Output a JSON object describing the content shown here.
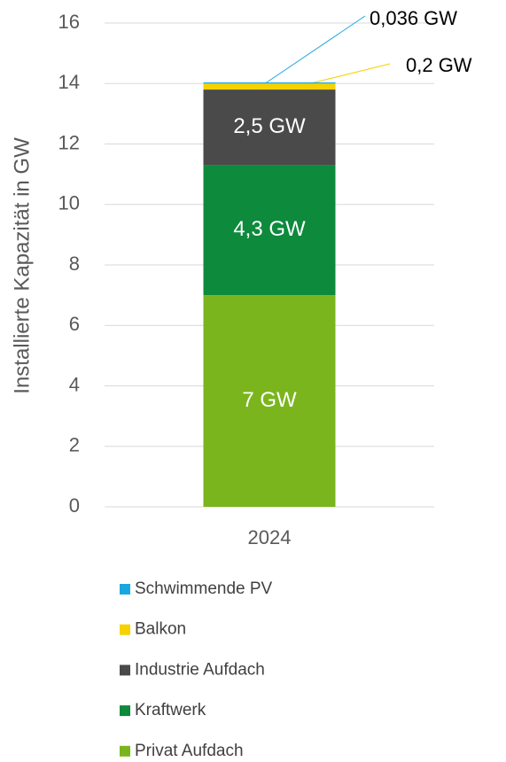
{
  "chart_data": {
    "type": "stacked_bar",
    "y_label": "Installierte Kapazität in GW",
    "categories": [
      "2024"
    ],
    "series": [
      {
        "name": "Privat Aufdach",
        "color": "#7ab51d",
        "values": [
          7
        ],
        "value_labels": [
          "7 GW"
        ]
      },
      {
        "name": "Kraftwerk",
        "color": "#0d8a3c",
        "values": [
          4.3
        ],
        "value_labels": [
          "4,3 GW"
        ]
      },
      {
        "name": "Industrie Aufdach",
        "color": "#4a4a4a",
        "values": [
          2.5
        ],
        "value_labels": [
          "2,5 GW"
        ]
      },
      {
        "name": "Balkon",
        "color": "#f5d200",
        "values": [
          0.2
        ],
        "value_labels": [
          "0,2 GW"
        ]
      },
      {
        "name": "Schwimmende PV",
        "color": "#1aa6df",
        "values": [
          0.036
        ],
        "value_labels": [
          "0,036 GW"
        ]
      }
    ],
    "ylim": [
      0,
      16
    ],
    "yticks": [
      0,
      2,
      4,
      6,
      8,
      10,
      12,
      14,
      16
    ],
    "grid": true
  }
}
